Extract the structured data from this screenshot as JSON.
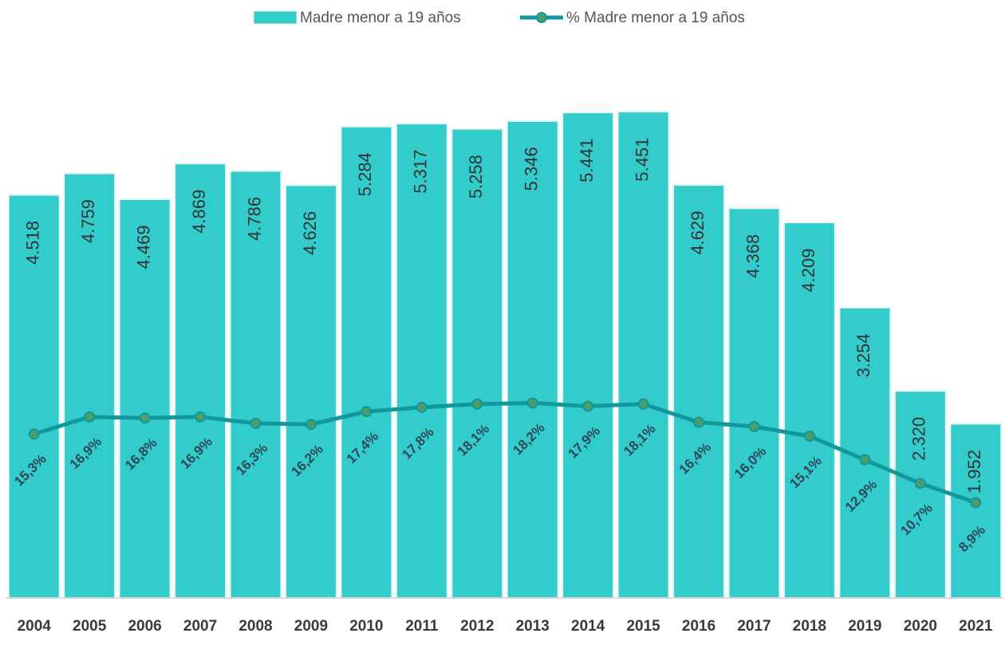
{
  "chart_data": {
    "type": "bar+line",
    "categories": [
      "2004",
      "2005",
      "2006",
      "2007",
      "2008",
      "2009",
      "2010",
      "2011",
      "2012",
      "2013",
      "2014",
      "2015",
      "2016",
      "2017",
      "2018",
      "2019",
      "2020",
      "2021"
    ],
    "series": [
      {
        "name": "Madre menor a 19 años",
        "type": "bar",
        "color": "#33cccc",
        "values": [
          4518,
          4759,
          4469,
          4869,
          4786,
          4626,
          5284,
          5317,
          5258,
          5346,
          5441,
          5451,
          4629,
          4368,
          4209,
          3254,
          2320,
          1952
        ],
        "value_labels": [
          "4.518",
          "4.759",
          "4.469",
          "4.869",
          "4.786",
          "4.626",
          "5.284",
          "5.317",
          "5.258",
          "5.346",
          "5.441",
          "5.451",
          "4.629",
          "4.368",
          "4.209",
          "3.254",
          "2.320",
          "1.952"
        ]
      },
      {
        "name": "% Madre menor a 19 años",
        "type": "line",
        "axis": "y2",
        "color": "#11999a",
        "values": [
          15.3,
          16.9,
          16.8,
          16.9,
          16.3,
          16.2,
          17.4,
          17.8,
          18.1,
          18.2,
          17.9,
          18.1,
          16.4,
          16.0,
          15.1,
          12.9,
          10.7,
          8.9
        ],
        "value_labels": [
          "15,3%",
          "16,9%",
          "16,8%",
          "16,9%",
          "16,3%",
          "16,2%",
          "17,4%",
          "17,8%",
          "18,1%",
          "18,2%",
          "17,9%",
          "18,1%",
          "16,4%",
          "16,0%",
          "15,1%",
          "12,9%",
          "10,7%",
          "8,9%"
        ]
      }
    ],
    "ylim": [
      0,
      5800
    ],
    "y2lim": [
      0,
      48.3
    ]
  }
}
